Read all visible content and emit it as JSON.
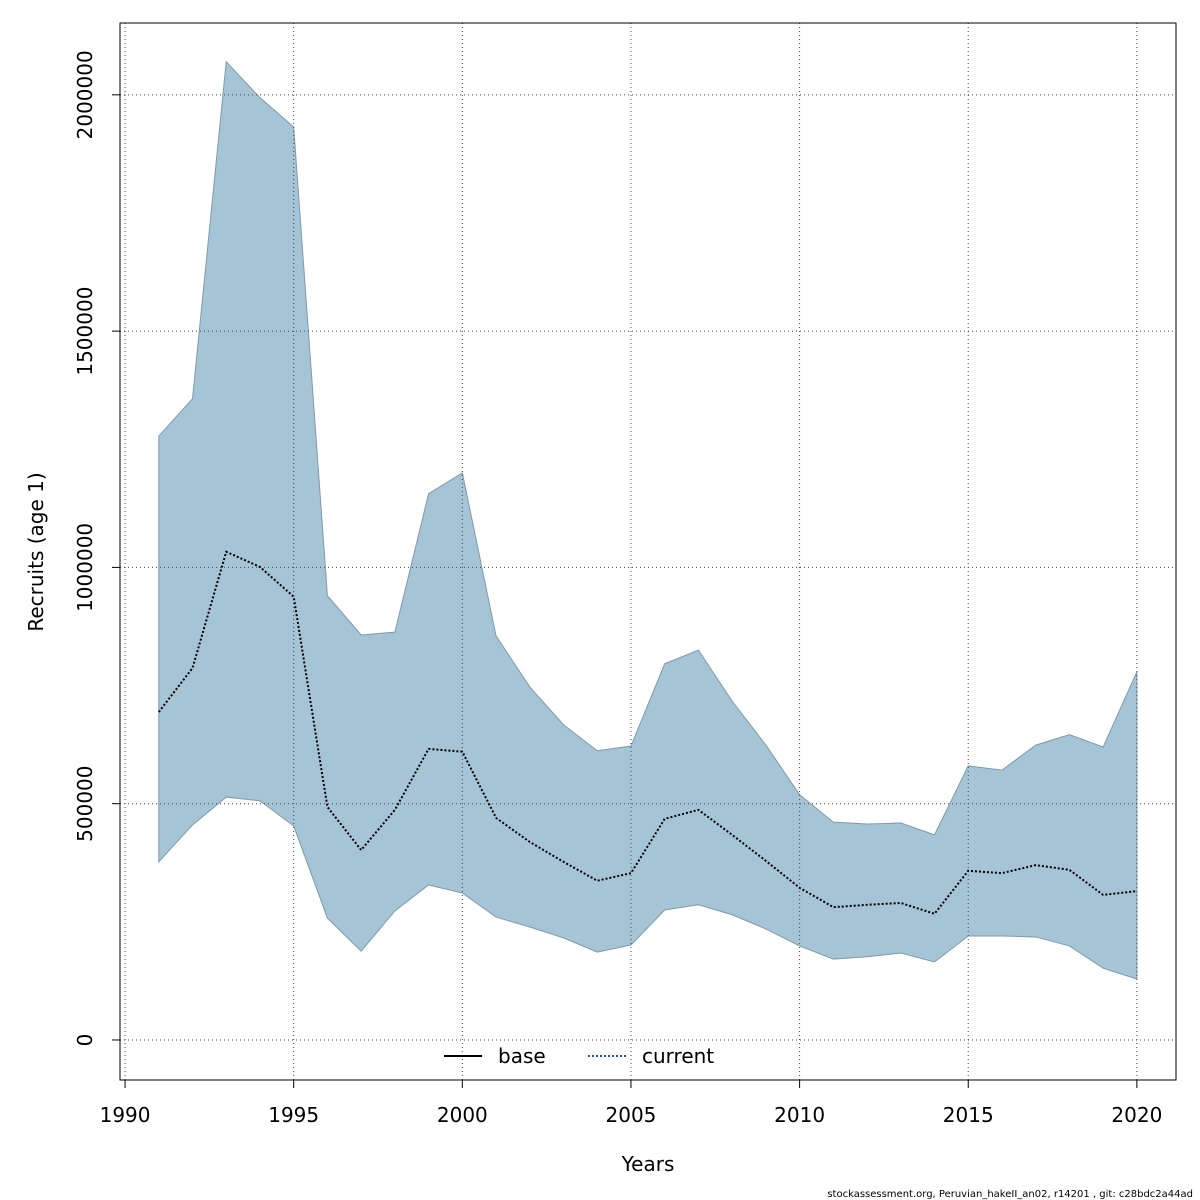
{
  "chart_data": {
    "type": "line",
    "xlabel": "Years",
    "ylabel": "Recruits (age 1)",
    "footer": "stockassessment.org, Peruvian_hakeII_an02, r14201 , git: c28bdc2a44ad",
    "x": [
      1991,
      1992,
      1993,
      1994,
      1995,
      1996,
      1997,
      1998,
      1999,
      2000,
      2001,
      2002,
      2003,
      2004,
      2005,
      2006,
      2007,
      2008,
      2009,
      2010,
      2011,
      2012,
      2013,
      2014,
      2015,
      2016,
      2017,
      2018,
      2019,
      2020
    ],
    "series": [
      {
        "name": "base",
        "color": "#000000",
        "dash": false,
        "values": [
          null,
          null,
          null,
          null,
          null,
          null,
          null,
          null,
          null,
          null,
          null,
          null,
          null,
          null,
          null,
          null,
          null,
          null,
          null,
          null,
          null,
          null,
          null,
          null,
          null,
          null,
          null,
          null,
          null,
          null
        ]
      },
      {
        "name": "current",
        "color": "#000000",
        "legend_color": "#1a5a8a",
        "dash": true,
        "values": [
          694000,
          787000,
          1033000,
          1001000,
          938000,
          493000,
          402000,
          487000,
          616000,
          610000,
          470000,
          419000,
          377000,
          337000,
          353000,
          468000,
          487000,
          434000,
          379000,
          322000,
          281000,
          286000,
          290000,
          267000,
          358000,
          353000,
          370000,
          360000,
          307000,
          315000
        ]
      }
    ],
    "band": {
      "color": "#a5c4d6",
      "upper": [
        1278000,
        1357000,
        2070000,
        1994000,
        1932000,
        940000,
        857000,
        863000,
        1156000,
        1200000,
        855000,
        747000,
        667000,
        612000,
        622000,
        796000,
        825000,
        717000,
        624000,
        519000,
        461000,
        457000,
        459000,
        434000,
        580000,
        571000,
        624000,
        646000,
        620000,
        779000
      ],
      "lower": [
        377000,
        455000,
        514000,
        506000,
        453000,
        258000,
        188000,
        273000,
        328000,
        311000,
        260000,
        239000,
        216000,
        186000,
        201000,
        275000,
        286000,
        265000,
        235000,
        199000,
        171000,
        176000,
        184000,
        165000,
        220000,
        220000,
        218000,
        199000,
        152000,
        129000
      ]
    },
    "xlim": [
      1989.85,
      2021.16
    ],
    "ylim": [
      -84700,
      2152000
    ],
    "xticks": [
      1990,
      1995,
      2000,
      2005,
      2010,
      2015,
      2020
    ],
    "yticks": [
      0,
      500000,
      1000000,
      1500000,
      2000000
    ],
    "grid": true,
    "legend": "bottom"
  }
}
